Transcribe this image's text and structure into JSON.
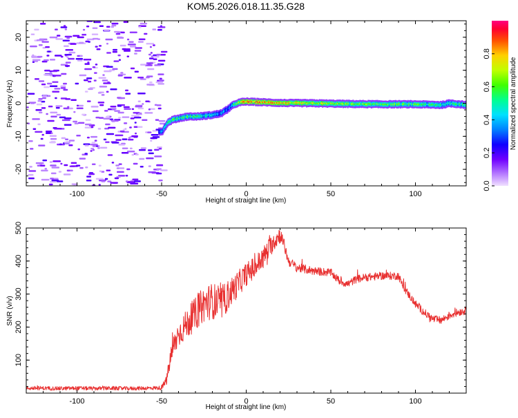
{
  "chart_data": [
    {
      "type": "heatmap",
      "title": "KOM5.2026.018.11.35.G28",
      "xlabel": "Height of straight line (km)",
      "ylabel": "Frequency (Hz)",
      "xlim": [
        -130,
        130
      ],
      "ylim": [
        -25,
        25
      ],
      "xticks": [
        -100,
        -50,
        0,
        50,
        100
      ],
      "yticks": [
        -20,
        -10,
        0,
        10,
        20
      ],
      "colorbar": {
        "label": "Normalized spectral amplitude",
        "range": [
          0,
          1
        ],
        "ticks": [
          "0.0",
          "0.2",
          "0.4",
          "0.6",
          "0.8"
        ],
        "colors": [
          "#e8c8ff",
          "#9a3cff",
          "#2020e0",
          "#00d0ff",
          "#00ff80",
          "#60ff00",
          "#ffff00",
          "#ff8000",
          "#ff0000",
          "#ff0080"
        ]
      },
      "ridge": {
        "x": [
          -50,
          -47,
          -44,
          -40,
          -35,
          -30,
          -25,
          -20,
          -15,
          -12,
          -9,
          -6,
          -3,
          0,
          10,
          20,
          40,
          60,
          80,
          100,
          115,
          120,
          130
        ],
        "freq": [
          -8.5,
          -6.0,
          -5.0,
          -4.5,
          -4.0,
          -4.0,
          -3.8,
          -3.5,
          -3.0,
          -2.0,
          -0.8,
          0.0,
          0.4,
          0.5,
          0.3,
          0.1,
          0.0,
          -0.2,
          -0.3,
          -0.3,
          -0.5,
          0.0,
          -0.5
        ],
        "amplitude": [
          0.35,
          0.45,
          0.55,
          0.5,
          0.55,
          0.5,
          0.45,
          0.4,
          0.4,
          0.35,
          0.45,
          0.6,
          0.75,
          0.85,
          0.8,
          0.75,
          0.7,
          0.6,
          0.6,
          0.55,
          0.5,
          0.55,
          0.5
        ]
      },
      "noise_region": {
        "x_range": [
          -130,
          -50
        ],
        "amplitude_range": [
          0.02,
          0.2
        ]
      }
    },
    {
      "type": "line",
      "title": "",
      "xlabel": "Height of straight line (km)",
      "ylabel": "SNR (v/v)",
      "xlim": [
        -130,
        130
      ],
      "ylim": [
        0,
        500
      ],
      "xticks": [
        -100,
        -50,
        0,
        50,
        100
      ],
      "yticks": [
        100,
        200,
        300,
        400,
        500
      ],
      "series": [
        {
          "name": "SNR",
          "color": "#e83030",
          "x": [
            -130,
            -120,
            -110,
            -100,
            -90,
            -80,
            -70,
            -60,
            -50,
            -47,
            -45,
            -43,
            -40,
            -35,
            -30,
            -25,
            -20,
            -15,
            -10,
            -5,
            0,
            5,
            10,
            15,
            20,
            22,
            25,
            30,
            40,
            50,
            55,
            60,
            65,
            70,
            80,
            90,
            93,
            100,
            105,
            110,
            115,
            120,
            125,
            130
          ],
          "y": [
            15,
            15,
            14,
            15,
            14,
            15,
            14,
            15,
            16,
            40,
            100,
            140,
            180,
            210,
            240,
            270,
            280,
            270,
            300,
            330,
            360,
            380,
            410,
            450,
            480,
            455,
            400,
            380,
            370,
            365,
            340,
            330,
            345,
            350,
            355,
            355,
            320,
            270,
            245,
            225,
            220,
            235,
            245,
            250
          ],
          "noise": [
            6,
            6,
            6,
            6,
            6,
            6,
            6,
            6,
            6,
            15,
            30,
            35,
            40,
            45,
            50,
            55,
            55,
            55,
            45,
            40,
            35,
            35,
            35,
            30,
            25,
            20,
            15,
            14,
            13,
            12,
            12,
            12,
            12,
            12,
            12,
            12,
            12,
            12,
            12,
            12,
            12,
            12,
            12,
            12
          ]
        }
      ]
    }
  ]
}
